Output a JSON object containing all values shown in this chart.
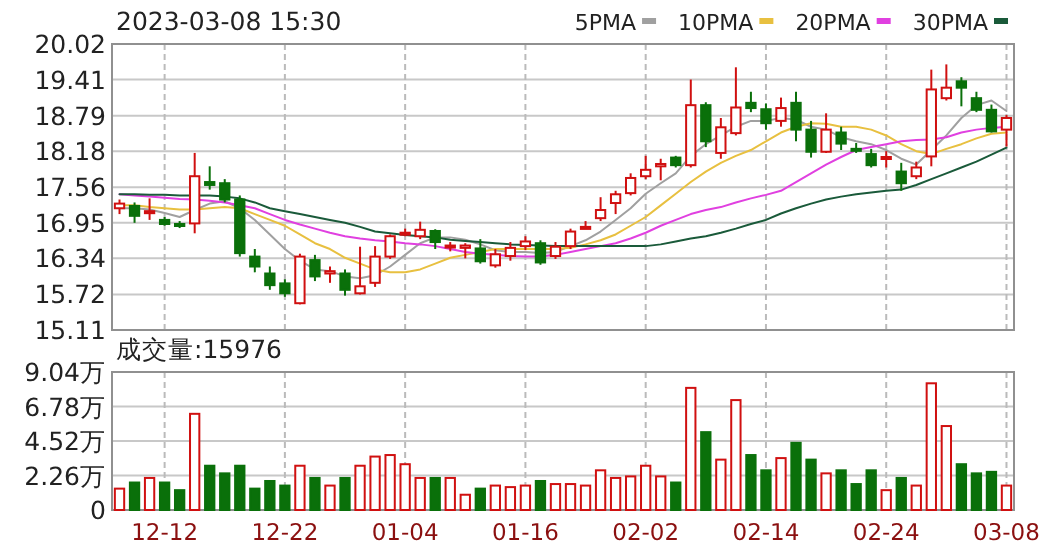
{
  "chart_data": [
    {
      "type": "candlestick",
      "title": "2023-03-08 15:30",
      "categories": [
        null,
        null,
        null,
        null,
        null,
        null,
        null,
        null,
        null,
        null,
        null,
        null,
        null,
        null,
        null,
        null,
        null,
        null,
        null,
        null,
        null,
        null,
        null,
        null,
        null,
        null,
        null,
        null,
        null,
        null,
        null,
        null,
        null,
        null,
        null,
        null,
        null,
        null,
        null,
        null,
        null,
        null,
        null,
        null,
        null,
        null,
        null,
        null,
        null,
        null,
        null,
        null,
        null,
        null,
        null,
        null,
        null,
        null,
        null,
        null
      ],
      "ohlc": [
        [
          17.2,
          17.35,
          17.1,
          17.28
        ],
        [
          17.24,
          17.3,
          16.95,
          17.07
        ],
        [
          17.12,
          17.37,
          17.0,
          17.15
        ],
        [
          17.0,
          17.05,
          16.9,
          16.93
        ],
        [
          16.93,
          16.98,
          16.86,
          16.91
        ],
        [
          16.94,
          18.15,
          16.77,
          17.75
        ],
        [
          17.65,
          17.92,
          17.52,
          17.6
        ],
        [
          17.63,
          17.7,
          17.3,
          17.35
        ],
        [
          17.35,
          17.42,
          16.37,
          16.43
        ],
        [
          16.37,
          16.5,
          16.1,
          16.2
        ],
        [
          16.08,
          16.2,
          15.8,
          15.88
        ],
        [
          15.91,
          15.98,
          15.68,
          15.74
        ],
        [
          15.57,
          16.42,
          15.55,
          16.37
        ],
        [
          16.31,
          16.4,
          15.95,
          16.03
        ],
        [
          16.08,
          16.2,
          15.92,
          16.12
        ],
        [
          16.08,
          16.15,
          15.7,
          15.8
        ],
        [
          15.74,
          16.54,
          15.72,
          15.86
        ],
        [
          15.92,
          16.55,
          15.85,
          16.37
        ],
        [
          16.37,
          16.75,
          16.33,
          16.72
        ],
        [
          16.76,
          16.85,
          16.72,
          16.78
        ],
        [
          16.72,
          16.97,
          16.67,
          16.83
        ],
        [
          16.81,
          16.84,
          16.5,
          16.62
        ],
        [
          16.53,
          16.62,
          16.46,
          16.56
        ],
        [
          16.52,
          16.6,
          16.34,
          16.56
        ],
        [
          16.51,
          16.67,
          16.25,
          16.29
        ],
        [
          16.22,
          16.5,
          16.18,
          16.41
        ],
        [
          16.38,
          16.62,
          16.3,
          16.52
        ],
        [
          16.55,
          16.72,
          16.48,
          16.63
        ],
        [
          16.6,
          16.65,
          16.23,
          16.27
        ],
        [
          16.38,
          16.62,
          16.33,
          16.54
        ],
        [
          16.55,
          16.85,
          16.5,
          16.8
        ],
        [
          16.85,
          16.98,
          16.85,
          16.88
        ],
        [
          17.03,
          17.39,
          16.98,
          17.17
        ],
        [
          17.29,
          17.5,
          17.1,
          17.44
        ],
        [
          17.46,
          17.8,
          17.42,
          17.72
        ],
        [
          17.75,
          18.1,
          17.7,
          17.86
        ],
        [
          17.92,
          18.05,
          17.68,
          17.96
        ],
        [
          18.07,
          18.1,
          17.9,
          17.94
        ],
        [
          17.94,
          19.41,
          17.9,
          18.97
        ],
        [
          18.97,
          19.02,
          18.25,
          18.35
        ],
        [
          18.15,
          18.75,
          18.05,
          18.59
        ],
        [
          18.49,
          19.62,
          18.45,
          18.93
        ],
        [
          19.01,
          19.2,
          18.85,
          18.92
        ],
        [
          18.9,
          19.0,
          18.55,
          18.66
        ],
        [
          18.7,
          19.1,
          18.6,
          18.92
        ],
        [
          19.01,
          19.2,
          18.35,
          18.55
        ],
        [
          18.55,
          18.7,
          18.07,
          18.17
        ],
        [
          18.17,
          18.83,
          18.15,
          18.55
        ],
        [
          18.5,
          18.6,
          18.2,
          18.31
        ],
        [
          18.22,
          18.32,
          18.15,
          18.2
        ],
        [
          18.13,
          18.22,
          17.9,
          17.94
        ],
        [
          18.05,
          18.18,
          17.9,
          18.08
        ],
        [
          17.83,
          17.98,
          17.5,
          17.63
        ],
        [
          17.75,
          18.0,
          17.7,
          17.9
        ],
        [
          18.09,
          19.58,
          17.92,
          19.24
        ],
        [
          19.09,
          19.67,
          19.05,
          19.27
        ],
        [
          19.38,
          19.45,
          18.95,
          19.27
        ],
        [
          19.09,
          19.2,
          18.85,
          18.89
        ],
        [
          18.89,
          18.98,
          18.5,
          18.52
        ],
        [
          18.55,
          18.8,
          18.26,
          18.75
        ]
      ],
      "colors": [
        "#d01010",
        "#0a700a",
        "#d01010",
        "#0a700a",
        "#0a700a",
        "#d01010",
        "#0a700a",
        "#0a700a",
        "#0a700a",
        "#0a700a",
        "#0a700a",
        "#0a700a",
        "#d01010",
        "#0a700a",
        "#d01010",
        "#0a700a",
        "#d01010",
        "#d01010",
        "#d01010",
        "#d01010",
        "#d01010",
        "#0a700a",
        "#d01010",
        "#d01010",
        "#0a700a",
        "#d01010",
        "#d01010",
        "#d01010",
        "#0a700a",
        "#d01010",
        "#d01010",
        "#d01010",
        "#d01010",
        "#d01010",
        "#d01010",
        "#d01010",
        "#d01010",
        "#0a700a",
        "#d01010",
        "#0a700a",
        "#d01010",
        "#d01010",
        "#0a700a",
        "#0a700a",
        "#d01010",
        "#0a700a",
        "#0a700a",
        "#d01010",
        "#0a700a",
        "#0a700a",
        "#0a700a",
        "#d01010",
        "#0a700a",
        "#d01010",
        "#d01010",
        "#d01010",
        "#0a700a",
        "#0a700a",
        "#0a700a",
        "#d01010"
      ],
      "series": [
        {
          "name": "5PMA",
          "type": "line",
          "color": "#a0a0a0",
          "values": [
            17.2,
            17.2,
            17.18,
            17.12,
            17.05,
            17.17,
            17.28,
            17.32,
            17.2,
            17.0,
            16.75,
            16.5,
            16.3,
            16.15,
            16.12,
            16.03,
            16.0,
            16.05,
            16.2,
            16.4,
            16.6,
            16.7,
            16.7,
            16.66,
            16.58,
            16.48,
            16.45,
            16.45,
            16.43,
            16.45,
            16.55,
            16.65,
            16.8,
            17.0,
            17.2,
            17.45,
            17.63,
            17.8,
            18.1,
            18.3,
            18.45,
            18.6,
            18.7,
            18.7,
            18.75,
            18.72,
            18.6,
            18.55,
            18.42,
            18.35,
            18.3,
            18.2,
            18.05,
            17.95,
            18.2,
            18.45,
            18.75,
            18.97,
            19.05,
            18.87
          ]
        },
        {
          "name": "10PMA",
          "type": "line",
          "color": "#e8c040",
          "values": [
            17.25,
            17.25,
            17.22,
            17.2,
            17.18,
            17.18,
            17.2,
            17.22,
            17.2,
            17.1,
            17.0,
            16.9,
            16.75,
            16.6,
            16.5,
            16.35,
            16.25,
            16.15,
            16.1,
            16.1,
            16.15,
            16.25,
            16.35,
            16.4,
            16.45,
            16.5,
            16.5,
            16.5,
            16.5,
            16.5,
            16.52,
            16.58,
            16.65,
            16.75,
            16.9,
            17.05,
            17.25,
            17.45,
            17.65,
            17.83,
            17.98,
            18.1,
            18.2,
            18.35,
            18.5,
            18.6,
            18.66,
            18.65,
            18.6,
            18.6,
            18.55,
            18.45,
            18.3,
            18.18,
            18.13,
            18.22,
            18.3,
            18.4,
            18.48,
            18.5
          ]
        },
        {
          "name": "20PMA",
          "type": "line",
          "color": "#e040e0",
          "values": [
            17.44,
            17.42,
            17.4,
            17.38,
            17.36,
            17.35,
            17.33,
            17.3,
            17.25,
            17.2,
            17.1,
            17.0,
            16.92,
            16.85,
            16.78,
            16.72,
            16.68,
            16.65,
            16.63,
            16.6,
            16.58,
            16.55,
            16.5,
            16.45,
            16.42,
            16.4,
            16.38,
            16.37,
            16.37,
            16.4,
            16.45,
            16.5,
            16.55,
            16.6,
            16.68,
            16.78,
            16.9,
            17.0,
            17.1,
            17.17,
            17.22,
            17.3,
            17.37,
            17.43,
            17.5,
            17.65,
            17.8,
            17.95,
            18.08,
            18.2,
            18.25,
            18.3,
            18.35,
            18.37,
            18.38,
            18.42,
            18.5,
            18.55,
            18.58,
            18.6
          ]
        },
        {
          "name": "30PMA",
          "type": "line",
          "color": "#1a5a3a",
          "values": [
            17.44,
            17.44,
            17.43,
            17.43,
            17.42,
            17.42,
            17.42,
            17.4,
            17.37,
            17.3,
            17.2,
            17.15,
            17.1,
            17.05,
            17.0,
            16.95,
            16.88,
            16.8,
            16.77,
            16.74,
            16.72,
            16.7,
            16.66,
            16.64,
            16.62,
            16.6,
            16.58,
            16.57,
            16.56,
            16.55,
            16.55,
            16.55,
            16.55,
            16.55,
            16.55,
            16.55,
            16.58,
            16.63,
            16.68,
            16.72,
            16.78,
            16.85,
            16.93,
            17.0,
            17.11,
            17.2,
            17.28,
            17.35,
            17.4,
            17.44,
            17.47,
            17.5,
            17.52,
            17.6,
            17.7,
            17.8,
            17.9,
            18.0,
            18.12,
            18.24
          ]
        }
      ],
      "ylim": [
        15.11,
        20.02
      ],
      "yticks": [
        15.11,
        15.72,
        16.34,
        16.95,
        17.56,
        18.18,
        18.79,
        19.41,
        20.02
      ],
      "grid": true,
      "legend": "top right",
      "tick_labels": "y"
    },
    {
      "type": "bar",
      "title": "成交量:15976",
      "categories": [
        null,
        null,
        null,
        "12-12",
        null,
        null,
        null,
        null,
        null,
        null,
        null,
        "12-22",
        null,
        null,
        null,
        null,
        null,
        null,
        null,
        "01-04",
        null,
        null,
        null,
        null,
        null,
        null,
        null,
        "01-16",
        null,
        null,
        null,
        null,
        null,
        null,
        null,
        "02-02",
        null,
        null,
        null,
        null,
        null,
        null,
        null,
        "02-14",
        null,
        null,
        null,
        null,
        null,
        null,
        null,
        "02-24",
        null,
        null,
        null,
        null,
        null,
        null,
        null,
        "03-08"
      ],
      "values": [
        1.4,
        1.8,
        2.1,
        1.8,
        1.3,
        6.3,
        2.9,
        2.4,
        2.9,
        1.4,
        1.9,
        1.6,
        2.9,
        2.1,
        1.6,
        2.1,
        2.9,
        3.5,
        3.6,
        3.0,
        2.1,
        2.1,
        2.1,
        1.0,
        1.4,
        1.6,
        1.5,
        1.6,
        1.9,
        1.7,
        1.7,
        1.6,
        2.6,
        2.1,
        2.2,
        2.9,
        2.2,
        1.8,
        8.0,
        5.1,
        3.3,
        7.2,
        3.6,
        2.6,
        3.4,
        4.4,
        3.3,
        2.4,
        2.6,
        1.7,
        2.6,
        1.3,
        2.1,
        1.6,
        8.3,
        5.5,
        3.0,
        2.4,
        2.5,
        1.6
      ],
      "colors": [
        "#d01010",
        "#0a700a",
        "#d01010",
        "#0a700a",
        "#0a700a",
        "#d01010",
        "#0a700a",
        "#0a700a",
        "#0a700a",
        "#0a700a",
        "#0a700a",
        "#0a700a",
        "#d01010",
        "#0a700a",
        "#d01010",
        "#0a700a",
        "#d01010",
        "#d01010",
        "#d01010",
        "#d01010",
        "#d01010",
        "#0a700a",
        "#d01010",
        "#d01010",
        "#0a700a",
        "#d01010",
        "#d01010",
        "#d01010",
        "#0a700a",
        "#d01010",
        "#d01010",
        "#d01010",
        "#d01010",
        "#d01010",
        "#d01010",
        "#d01010",
        "#d01010",
        "#0a700a",
        "#d01010",
        "#0a700a",
        "#d01010",
        "#d01010",
        "#0a700a",
        "#0a700a",
        "#d01010",
        "#0a700a",
        "#0a700a",
        "#d01010",
        "#0a700a",
        "#0a700a",
        "#0a700a",
        "#d01010",
        "#0a700a",
        "#d01010",
        "#d01010",
        "#d01010",
        "#0a700a",
        "#0a700a",
        "#0a700a",
        "#d01010"
      ],
      "ylim": [
        0,
        9.04
      ],
      "yticks": [
        0,
        {
          "value": 2.26,
          "label": "2.26万"
        },
        {
          "value": 4.52,
          "label": "4.52万"
        },
        {
          "value": 6.78,
          "label": "6.78万"
        },
        {
          "value": 9.04,
          "label": "9.04万"
        }
      ],
      "grid": true
    }
  ]
}
